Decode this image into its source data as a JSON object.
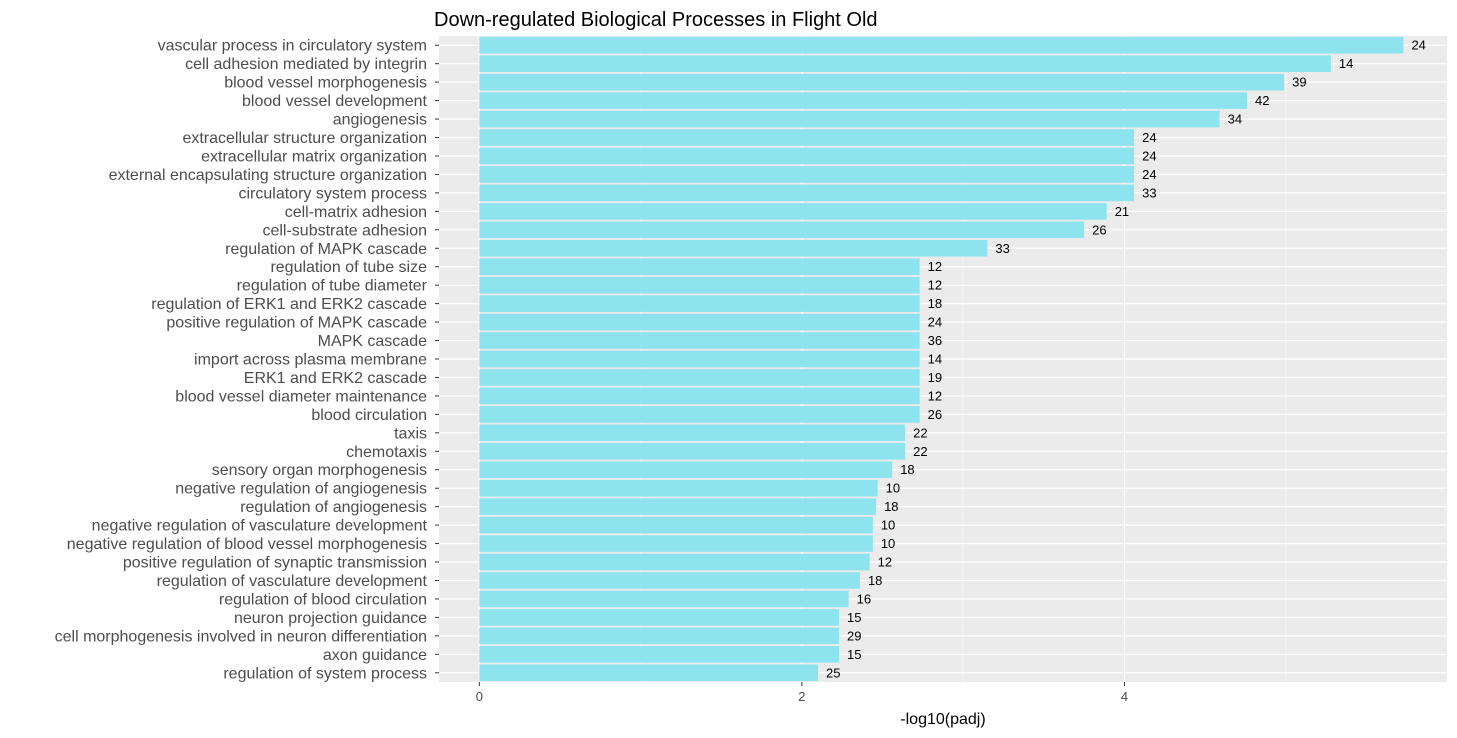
{
  "chart_data": {
    "type": "bar",
    "orientation": "horizontal",
    "title": "Down-regulated Biological Processes in Flight Old",
    "xlabel": "-log10(padj)",
    "ylabel": "",
    "xlim": [
      -0.25,
      6.0
    ],
    "xticks": [
      0,
      2,
      4
    ],
    "grid": true,
    "legend": "none",
    "categories": [
      "vascular process in circulatory system",
      "cell adhesion mediated by integrin",
      "blood vessel morphogenesis",
      "blood vessel development",
      "angiogenesis",
      "extracellular structure organization",
      "extracellular matrix organization",
      "external encapsulating structure organization",
      "circulatory system process",
      "cell-matrix adhesion",
      "cell-substrate adhesion",
      "regulation of MAPK cascade",
      "regulation of tube size",
      "regulation of tube diameter",
      "regulation of ERK1 and ERK2 cascade",
      "positive regulation of MAPK cascade",
      "MAPK cascade",
      "import across plasma membrane",
      "ERK1 and ERK2 cascade",
      "blood vessel diameter maintenance",
      "blood circulation",
      "taxis",
      "chemotaxis",
      "sensory organ morphogenesis",
      "negative regulation of angiogenesis",
      "regulation of angiogenesis",
      "negative regulation of vasculature development",
      "negative regulation of blood vessel morphogenesis",
      "positive regulation of synaptic transmission",
      "regulation of vasculature development",
      "regulation of blood circulation",
      "neuron projection guidance",
      "cell morphogenesis involved in neuron differentiation",
      "axon guidance",
      "regulation of system process"
    ],
    "values": [
      5.73,
      5.28,
      4.99,
      4.76,
      4.59,
      4.06,
      4.06,
      4.06,
      4.06,
      3.89,
      3.75,
      3.15,
      2.73,
      2.73,
      2.73,
      2.73,
      2.73,
      2.73,
      2.73,
      2.73,
      2.73,
      2.64,
      2.64,
      2.56,
      2.47,
      2.46,
      2.44,
      2.44,
      2.42,
      2.36,
      2.29,
      2.23,
      2.23,
      2.23,
      2.1
    ],
    "labels": [
      "24",
      "14",
      "39",
      "42",
      "34",
      "24",
      "24",
      "24",
      "33",
      "21",
      "26",
      "33",
      "12",
      "12",
      "18",
      "24",
      "36",
      "14",
      "19",
      "12",
      "26",
      "22",
      "22",
      "18",
      "10",
      "18",
      "10",
      "10",
      "12",
      "18",
      "16",
      "15",
      "29",
      "15",
      "25"
    ],
    "colors": {
      "bar": "#8ee4ee",
      "panel": "#ebebeb",
      "grid_major": "#ffffff",
      "grid_minor": "#f5f5f5",
      "axis_text": "#4d4d4d",
      "tick": "#333333"
    }
  }
}
